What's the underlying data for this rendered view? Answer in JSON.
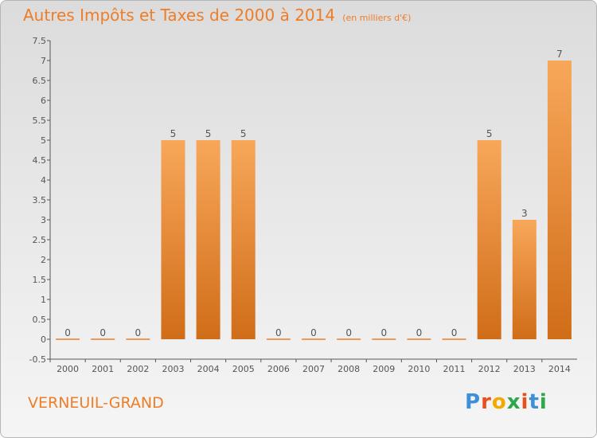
{
  "title": "Autres Impôts et Taxes de 2000 à 2014",
  "unit_label": "(en milliers d'€)",
  "commune": "VERNEUIL-GRAND",
  "logo": {
    "text": "Proxiti",
    "colors": [
      "#3d8fd6",
      "#e94e1b",
      "#f2a900",
      "#2aa84a",
      "#e94e1b",
      "#3d8fd6",
      "#2aa84a"
    ]
  },
  "colors": {
    "bar_light": "#f8a75a",
    "bar_dark": "#d06d18",
    "accent": "#ee7d28"
  },
  "chart_data": {
    "type": "bar",
    "categories": [
      "2000",
      "2001",
      "2002",
      "2003",
      "2004",
      "2005",
      "2006",
      "2007",
      "2008",
      "2009",
      "2010",
      "2011",
      "2012",
      "2013",
      "2014"
    ],
    "values": [
      0,
      0,
      0,
      5,
      5,
      5,
      0,
      0,
      0,
      0,
      0,
      0,
      5,
      3,
      7
    ],
    "value_labels": [
      "0",
      "0",
      "0",
      "5",
      "5",
      "5",
      "0",
      "0",
      "0",
      "0",
      "0",
      "0",
      "5",
      "3",
      "7"
    ],
    "ylim": [
      -0.5,
      7.5
    ],
    "yticks": [
      "-0.5",
      "0",
      "0.5",
      "1",
      "1.5",
      "2",
      "2.5",
      "3",
      "3.5",
      "4",
      "4.5",
      "5",
      "5.5",
      "6",
      "6.5",
      "7",
      "7.5"
    ],
    "ytick_values": [
      -0.5,
      0,
      0.5,
      1,
      1.5,
      2,
      2.5,
      3,
      3.5,
      4,
      4.5,
      5,
      5.5,
      6,
      6.5,
      7,
      7.5
    ],
    "grid": false,
    "legend": "none"
  }
}
